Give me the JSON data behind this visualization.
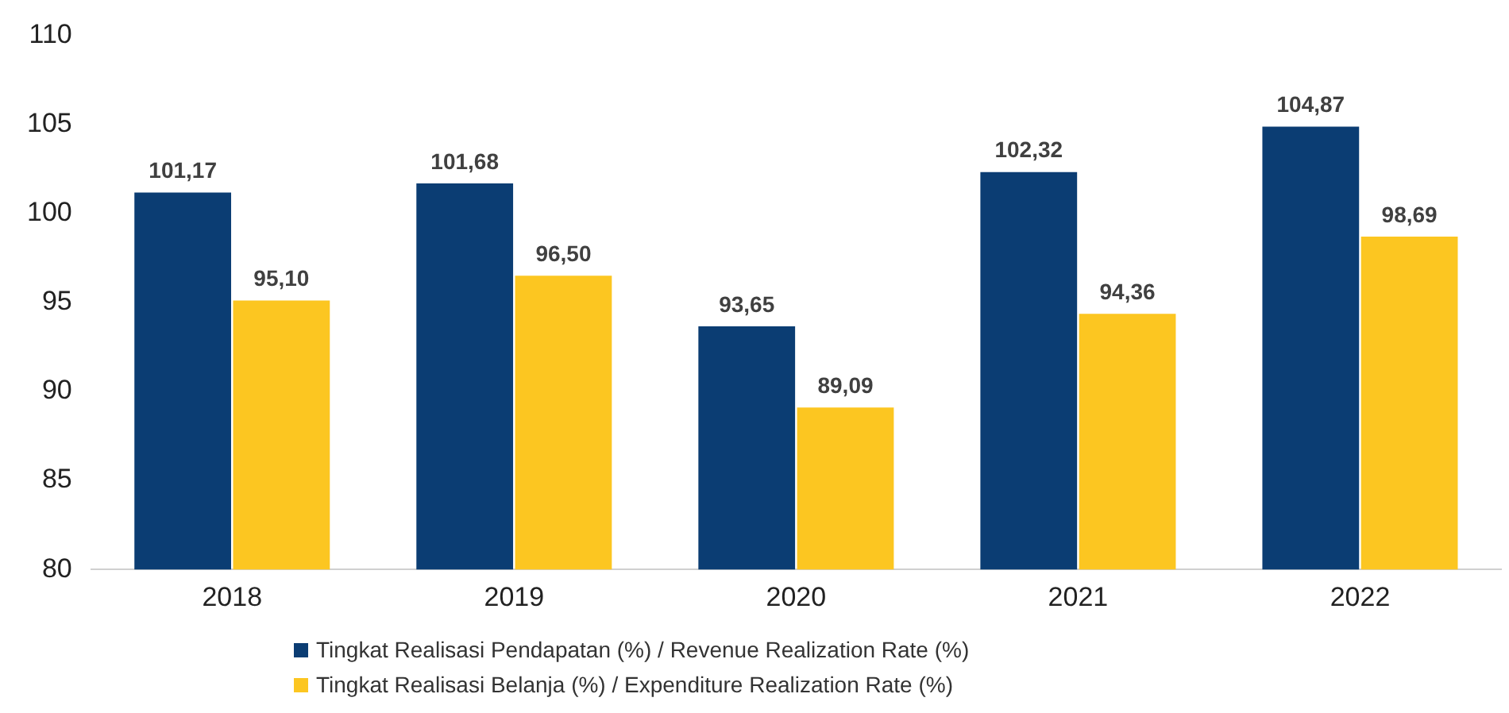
{
  "chart_data": {
    "type": "bar",
    "categories": [
      "2018",
      "2019",
      "2020",
      "2021",
      "2022"
    ],
    "series": [
      {
        "name": "Tingkat Realisasi Pendapatan (%) / Revenue Realization Rate (%)",
        "color": "#0b3d73",
        "values": [
          101.17,
          101.68,
          93.65,
          102.32,
          104.87
        ],
        "value_labels": [
          "101,17",
          "101,68",
          "93,65",
          "102,32",
          "104,87"
        ]
      },
      {
        "name": "Tingkat Realisasi Belanja (%) / Expenditure Realization Rate (%)",
        "color": "#fcc621",
        "values": [
          95.1,
          96.5,
          89.09,
          94.36,
          98.69
        ],
        "value_labels": [
          "95,10",
          "96,50",
          "89,09",
          "94,36",
          "98,69"
        ]
      }
    ],
    "ylim": [
      80,
      110
    ],
    "yticks": [
      80,
      85,
      90,
      95,
      100,
      105,
      110
    ],
    "grid": false,
    "legend": "bottom"
  }
}
